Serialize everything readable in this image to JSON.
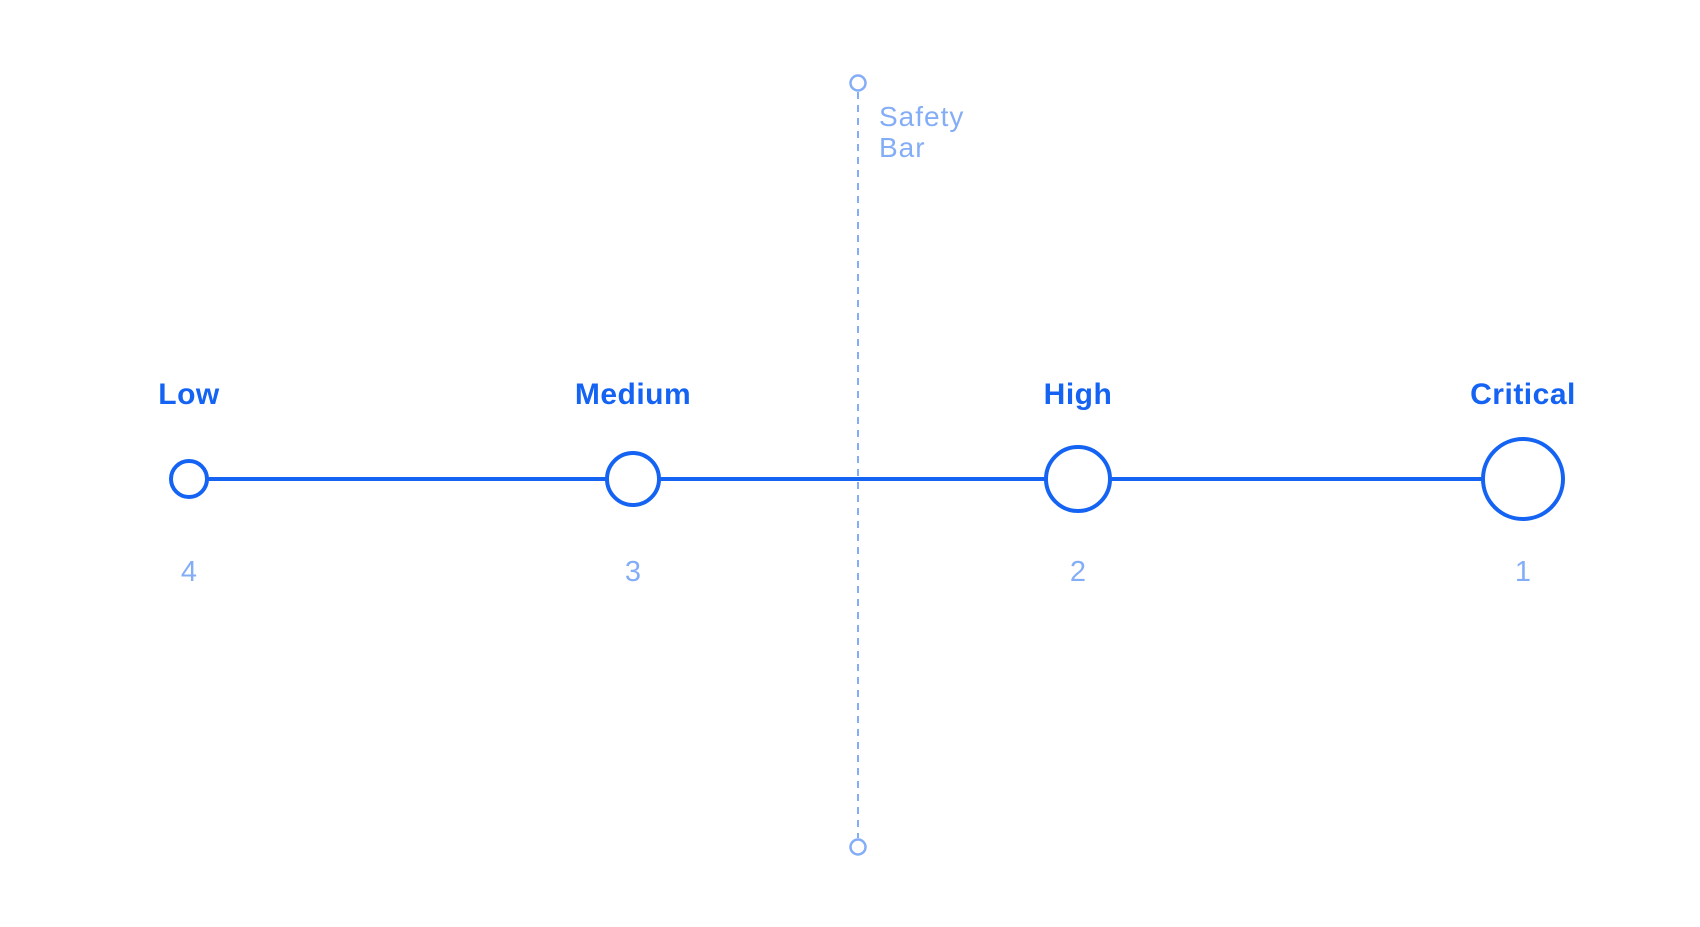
{
  "colors": {
    "primary": "#1463f3",
    "secondary": "#84adf7",
    "background": "#ffffff"
  },
  "safety_bar": {
    "label_line1": "Safety",
    "label_line2": "Bar"
  },
  "levels": [
    {
      "key": "low",
      "label": "Low",
      "rank": "4"
    },
    {
      "key": "medium",
      "label": "Medium",
      "rank": "3"
    },
    {
      "key": "high",
      "label": "High",
      "rank": "2"
    },
    {
      "key": "critical",
      "label": "Critical",
      "rank": "1"
    }
  ]
}
